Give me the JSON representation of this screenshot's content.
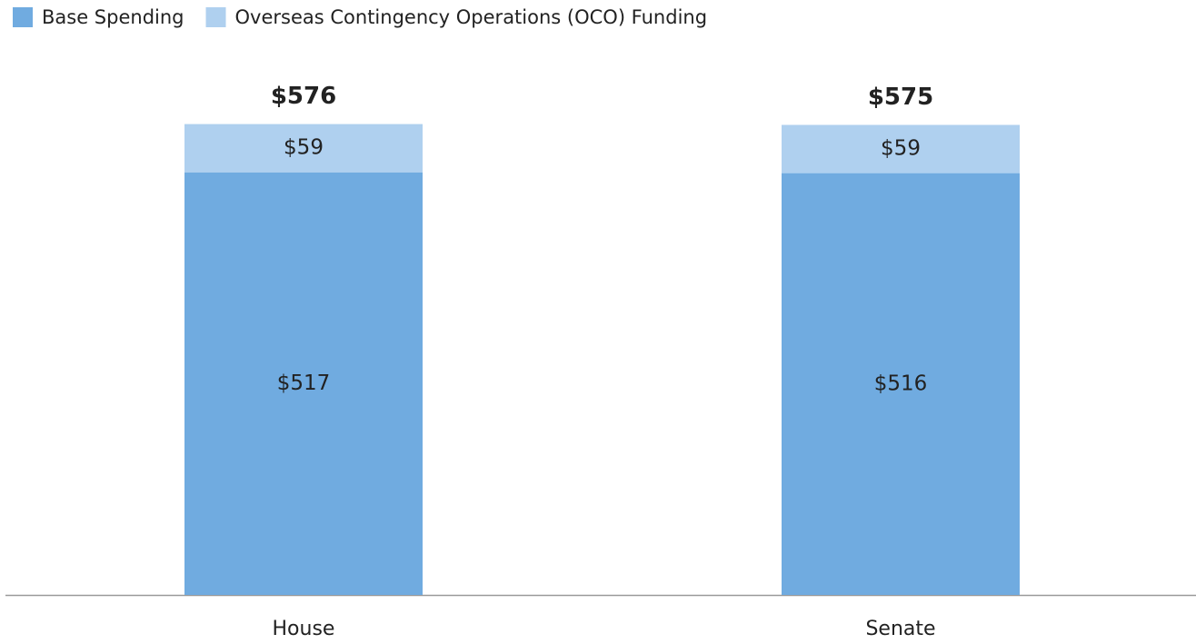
{
  "chart_data": {
    "type": "stacked_bar",
    "categories": [
      "House",
      "Senate"
    ],
    "series": [
      {
        "name": "Base Spending",
        "color": "#70abe0",
        "values": [
          517,
          516
        ],
        "value_labels": [
          "$517",
          "$516"
        ]
      },
      {
        "name": "Overseas Contingency Operations (OCO) Funding",
        "color": "#afd0ef",
        "values": [
          59,
          59
        ],
        "value_labels": [
          "$59",
          "$59"
        ]
      }
    ],
    "totals": [
      576,
      575
    ],
    "total_labels": [
      "$576",
      "$575"
    ],
    "legend": "top-left"
  }
}
